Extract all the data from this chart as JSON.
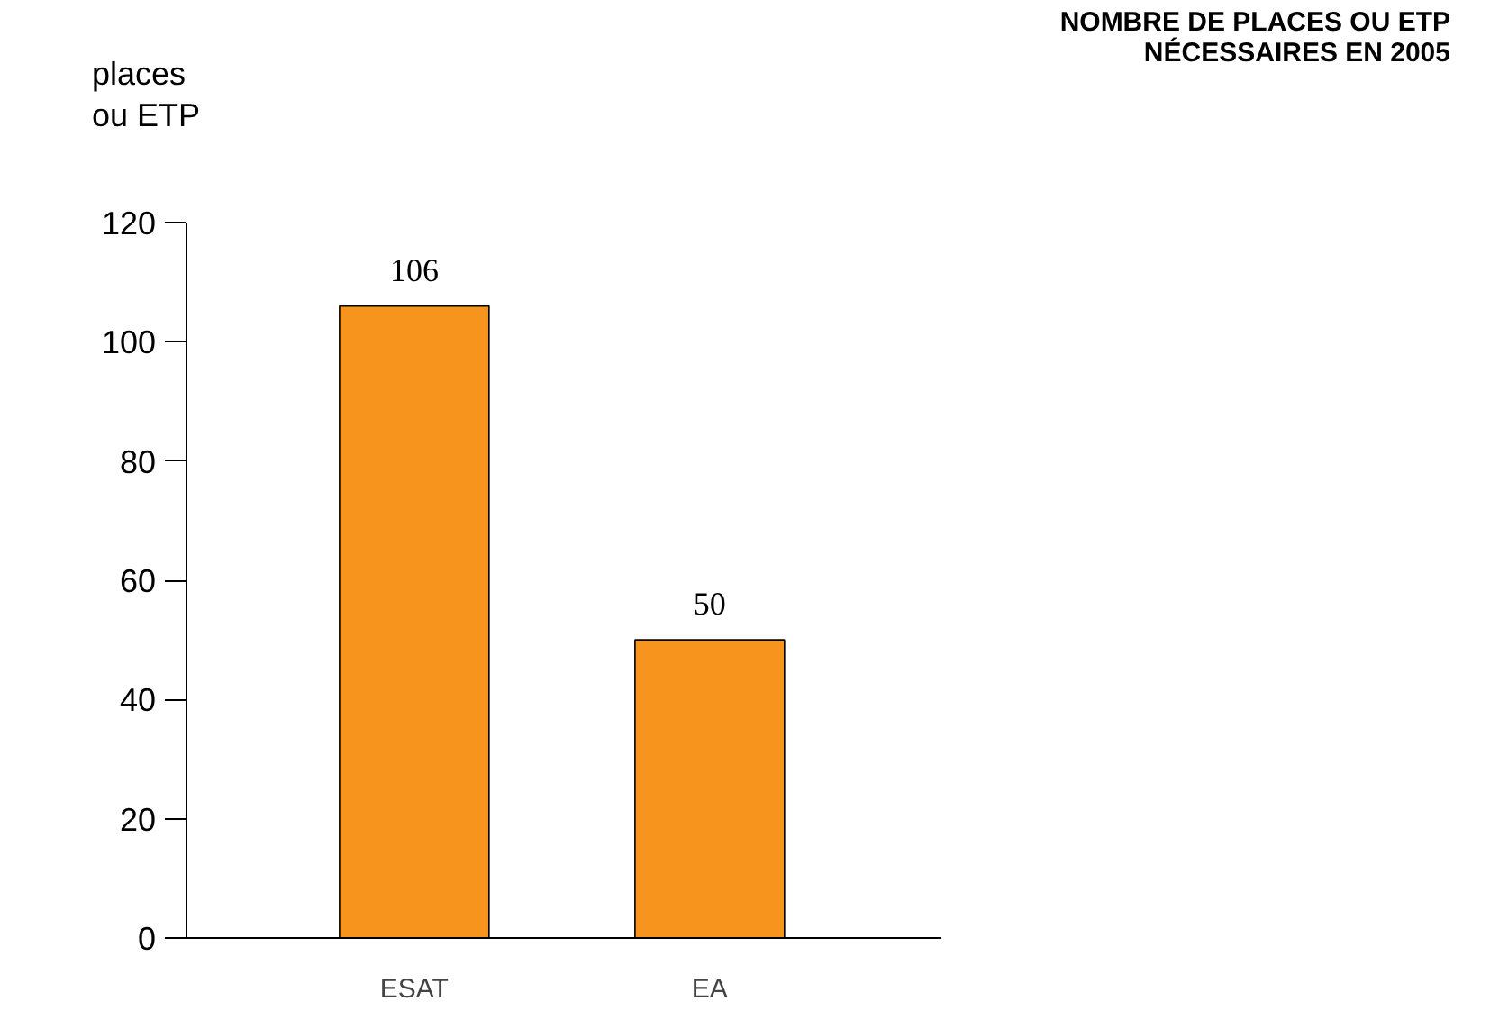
{
  "chart_data": {
    "type": "bar",
    "title": "NOMBRE DE PLACES OU ETP\nNÉCESSAIRES EN 2005",
    "ylabel": "places\nou ETP",
    "categories": [
      "ESAT",
      "EA"
    ],
    "values": [
      106,
      50
    ],
    "color": "#f7941d",
    "ylim": [
      0,
      120
    ],
    "yticks": [
      0,
      20,
      40,
      60,
      80,
      100,
      120
    ],
    "grid": false,
    "data_labels": true
  }
}
